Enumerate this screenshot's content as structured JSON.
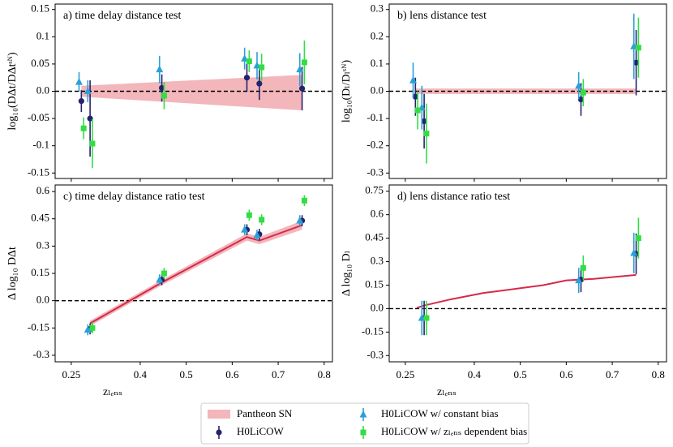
{
  "chart_data": [
    {
      "type": "scatter",
      "title": "a) time delay distance test",
      "ylabel": "log₁₀(DΔt/DΔtˢᴺ)",
      "xlim": [
        0.215,
        0.818
      ],
      "xticks": [
        0.25,
        0.4,
        0.5,
        0.6,
        0.7,
        0.8
      ],
      "ylim": [
        -0.16,
        0.16
      ],
      "yticks": [
        -0.15,
        {
          "value": -0.1,
          "label": "-0.1"
        },
        -0.05,
        {
          "value": 0,
          "label": "0.0"
        },
        0.05,
        0.1,
        0.15
      ],
      "reference_line": 0,
      "band": {
        "name": "Pantheon SN",
        "color": "#f2b6bb",
        "x": [
          0.272,
          0.752
        ],
        "lower": [
          -0.01,
          -0.035
        ],
        "upper": [
          0.01,
          0.03
        ]
      },
      "series": [
        {
          "name": "H0LiCOW",
          "color": "#24246e",
          "marker": "o",
          "x": [
            0.272,
            0.291,
            0.447,
            0.632,
            0.659,
            0.752
          ],
          "values": [
            -0.018,
            -0.05,
            0.006,
            0.025,
            0.014,
            0.005
          ],
          "errors": [
            0.02,
            0.07,
            0.025,
            0.025,
            0.03,
            0.04
          ]
        },
        {
          "name": "H0LiCOW w/ constant bias",
          "color": "#2aa0d8",
          "marker": "^",
          "x": [
            0.267,
            0.286,
            0.442,
            0.627,
            0.654,
            0.747
          ],
          "values": [
            0.017,
            0.0,
            0.04,
            0.06,
            0.047,
            0.04
          ],
          "errors": [
            0.018,
            0.02,
            0.025,
            0.02,
            0.025,
            0.03
          ]
        },
        {
          "name": "H0LiCOW w/ zₗₑₙₛ dependent bias",
          "color": "#33dd44",
          "marker": "s",
          "x": [
            0.277,
            0.296,
            0.452,
            0.637,
            0.664,
            0.757
          ],
          "values": [
            -0.068,
            -0.096,
            -0.008,
            0.055,
            0.044,
            0.053
          ],
          "errors": [
            0.02,
            0.045,
            0.025,
            0.02,
            0.025,
            0.04
          ]
        }
      ]
    },
    {
      "type": "scatter",
      "title": "b) lens distance test",
      "ylabel": "log₁₀(Dₗ/Dₗˢᴺ)",
      "xlim": [
        0.215,
        0.818
      ],
      "xticks": [
        0.25,
        0.4,
        0.5,
        0.6,
        0.7,
        0.8
      ],
      "ylim": [
        -0.32,
        0.32
      ],
      "yticks": [
        -0.3,
        -0.2,
        -0.1,
        {
          "value": 0,
          "label": "0.0"
        },
        0.1,
        0.2,
        0.3
      ],
      "reference_line": 0,
      "band": {
        "color": "#f2b6bb",
        "x": [
          0.272,
          0.752
        ],
        "lower": [
          -0.01,
          -0.01
        ],
        "upper": [
          0.01,
          0.01
        ]
      },
      "series": [
        {
          "color": "#24246e",
          "marker": "o",
          "x": [
            0.272,
            0.291,
            0.632,
            0.752
          ],
          "values": [
            -0.02,
            -0.11,
            -0.03,
            0.105
          ],
          "errors": [
            0.07,
            0.1,
            0.06,
            0.12
          ]
        },
        {
          "color": "#2aa0d8",
          "marker": "^",
          "x": [
            0.267,
            0.286,
            0.627,
            0.747
          ],
          "values": [
            0.04,
            -0.06,
            0.02,
            0.165
          ],
          "errors": [
            0.065,
            0.08,
            0.05,
            0.12
          ]
        },
        {
          "color": "#33dd44",
          "marker": "s",
          "x": [
            0.277,
            0.296,
            0.637,
            0.757
          ],
          "values": [
            -0.07,
            -0.155,
            -0.005,
            0.16
          ],
          "errors": [
            0.07,
            0.11,
            0.05,
            0.11
          ]
        }
      ]
    },
    {
      "type": "scatter",
      "title": "c) time delay distance ratio test",
      "ylabel": "Δ log₁₀ DΔt",
      "xlabel": "zₗₑₙₛ",
      "xlim": [
        0.215,
        0.818
      ],
      "xticks": [
        0.25,
        0.4,
        0.5,
        0.6,
        0.7,
        0.8
      ],
      "ylim": [
        -0.336,
        0.636
      ],
      "yticks": [
        -0.3,
        -0.15,
        {
          "value": 0,
          "label": "0.0"
        },
        0.15,
        {
          "value": 0.3,
          "label": "0.3"
        },
        0.45,
        {
          "value": 0.6,
          "label": "0.6"
        }
      ],
      "reference_line": 0,
      "band": {
        "color": "#f2b6bb",
        "x": [
          0.291,
          0.447,
          0.632,
          0.659,
          0.752
        ],
        "lower": [
          -0.14,
          0.085,
          0.33,
          0.31,
          0.39
        ],
        "upper": [
          -0.11,
          0.115,
          0.37,
          0.35,
          0.44
        ]
      },
      "model": {
        "color": "#d42a48",
        "x": [
          0.291,
          0.447,
          0.632,
          0.659,
          0.752
        ],
        "values": [
          -0.125,
          0.1,
          0.35,
          0.33,
          0.415
        ]
      },
      "series": [
        {
          "color": "#24246e",
          "marker": "o",
          "x": [
            0.291,
            0.447,
            0.632,
            0.659,
            0.752
          ],
          "values": [
            -0.155,
            0.115,
            0.39,
            0.365,
            0.44
          ],
          "errors": [
            0.03,
            0.03,
            0.03,
            0.03,
            0.03
          ]
        },
        {
          "color": "#2aa0d8",
          "marker": "^",
          "x": [
            0.286,
            0.442,
            0.627,
            0.654,
            0.747
          ],
          "values": [
            -0.16,
            0.115,
            0.39,
            0.36,
            0.44
          ],
          "errors": [
            0.03,
            0.03,
            0.03,
            0.03,
            0.03
          ]
        },
        {
          "color": "#33dd44",
          "marker": "s",
          "x": [
            0.296,
            0.452,
            0.637,
            0.664,
            0.757
          ],
          "values": [
            -0.15,
            0.15,
            0.47,
            0.445,
            0.55
          ],
          "errors": [
            0.03,
            0.03,
            0.03,
            0.03,
            0.03
          ]
        }
      ]
    },
    {
      "type": "scatter",
      "title": "d) lens distance ratio test",
      "ylabel": "Δ log₁₀ Dₗ",
      "xlabel": "zₗₑₙₛ",
      "xlim": [
        0.215,
        0.818
      ],
      "xticks": [
        0.25,
        0.4,
        0.5,
        0.6,
        0.7,
        0.8
      ],
      "ylim": [
        -0.34,
        0.79
      ],
      "yticks": [
        -0.3,
        -0.15,
        {
          "value": 0,
          "label": "0.0"
        },
        0.15,
        {
          "value": 0.3,
          "label": "0.3"
        },
        0.45,
        {
          "value": 0.6,
          "label": "0.6"
        },
        0.75
      ],
      "reference_line": 0,
      "model": {
        "color": "#d42a48",
        "x": [
          0.275,
          0.291,
          0.35,
          0.42,
          0.46,
          0.55,
          0.6,
          0.66,
          0.752
        ],
        "values": [
          0.005,
          0.02,
          0.06,
          0.1,
          0.115,
          0.15,
          0.18,
          0.19,
          0.215
        ]
      },
      "series": [
        {
          "color": "#24246e",
          "marker": "o",
          "x": [
            0.291,
            0.632,
            0.752
          ],
          "values": [
            -0.06,
            0.185,
            0.35
          ],
          "errors": [
            0.11,
            0.08,
            0.13
          ]
        },
        {
          "color": "#2aa0d8",
          "marker": "^",
          "x": [
            0.286,
            0.627,
            0.747
          ],
          "values": [
            -0.06,
            0.18,
            0.355
          ],
          "errors": [
            0.11,
            0.08,
            0.13
          ]
        },
        {
          "color": "#33dd44",
          "marker": "s",
          "x": [
            0.296,
            0.637,
            0.757
          ],
          "values": [
            -0.06,
            0.26,
            0.45
          ],
          "errors": [
            0.11,
            0.08,
            0.13
          ]
        }
      ]
    }
  ]
}
